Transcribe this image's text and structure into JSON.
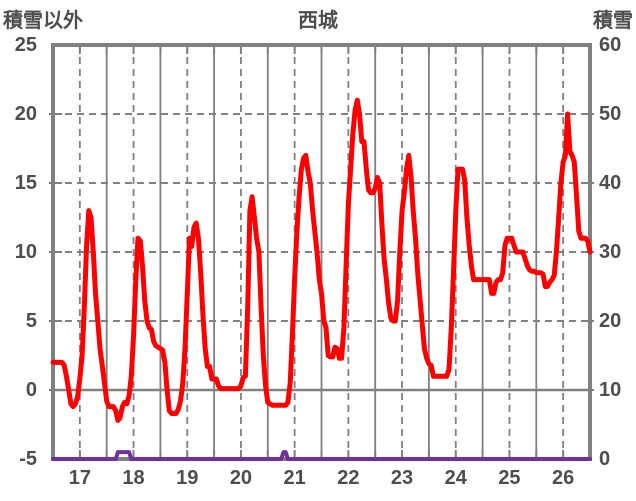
{
  "header": {
    "left_axis_title": "積雪以外",
    "title": "西城",
    "right_axis_title": "積雪"
  },
  "colors": {
    "temperature_series": "#ff0000",
    "snow_series": "#7030a0",
    "grid": "#808080",
    "text": "#4d4d4d",
    "background": "#ffffff"
  },
  "chart_data": {
    "type": "line",
    "title": "西城",
    "left_axis": {
      "title": "積雪以外",
      "ticks": [
        25,
        20,
        15,
        10,
        5,
        0,
        -5
      ],
      "range": [
        -5,
        25
      ]
    },
    "right_axis": {
      "title": "積雪",
      "ticks": [
        60,
        50,
        40,
        30,
        20,
        10,
        0
      ],
      "range": [
        0,
        60
      ]
    },
    "x_axis": {
      "labels": [
        "17",
        "18",
        "19",
        "20",
        "21",
        "22",
        "23",
        "24",
        "25",
        "26"
      ],
      "hours_per_day": 24
    },
    "grid": {
      "vertical_solid": "day boundaries",
      "vertical_dashed": "day midpoints",
      "horizontal_dashed": "every 5 left-units",
      "horizontal_solid_at": 0
    },
    "series": [
      {
        "name": "積雪以外",
        "axis": "left",
        "color": "#ff0000",
        "values": [
          2,
          2,
          2,
          2,
          2,
          1.8,
          1,
          0,
          -1,
          -1.2,
          -1,
          -0.5,
          0.8,
          2.5,
          6,
          10.5,
          13,
          12.5,
          10,
          7,
          5,
          3,
          1.8,
          0.5,
          -0.8,
          -1.2,
          -1.2,
          -1.2,
          -1.5,
          -2.2,
          -2,
          -1.2,
          -0.9,
          -1,
          -0.4,
          1,
          4,
          8,
          11,
          10.8,
          9,
          6.5,
          5,
          4.5,
          4.4,
          3.5,
          3.2,
          3.1,
          3,
          2.9,
          2,
          0,
          -1.5,
          -1.7,
          -1.7,
          -1.7,
          -1.4,
          -0.8,
          0.5,
          3,
          7,
          11,
          10.4,
          11.8,
          12.1,
          11,
          8.5,
          5.5,
          3,
          1.7,
          1.7,
          0.8,
          0.8,
          0.8,
          0.3,
          0.1,
          0.1,
          0.1,
          0.1,
          0.1,
          0.1,
          0.1,
          0.1,
          0.1,
          0.3,
          0.9,
          1,
          6,
          13,
          14,
          12.5,
          11,
          10,
          6,
          2.5,
          0.3,
          -0.9,
          -1,
          -1.1,
          -1.1,
          -1.1,
          -1.1,
          -1.1,
          -1.1,
          -1.1,
          -0.9,
          0.5,
          4,
          8,
          11.5,
          14,
          16,
          16.8,
          17,
          15.8,
          15,
          13,
          11.5,
          10,
          8,
          7,
          5.1,
          4.5,
          2.5,
          2.4,
          2.4,
          3.1,
          3,
          2.3,
          2.3,
          4.5,
          9,
          13.5,
          16,
          18.5,
          20.3,
          21,
          20,
          18,
          18,
          16,
          14.5,
          14.3,
          14.3,
          14.6,
          15.4,
          15,
          12,
          9.5,
          8,
          6.3,
          5.2,
          5,
          5,
          6.5,
          10,
          13,
          14.3,
          16,
          17,
          15.5,
          13,
          11,
          8.5,
          6.7,
          4.8,
          3,
          2.3,
          1.9,
          1.8,
          1,
          1,
          1,
          1,
          1,
          1,
          1,
          1.5,
          4.5,
          8.5,
          13,
          16,
          16,
          16,
          15.2,
          12.5,
          10.5,
          9,
          8,
          8,
          8,
          8,
          8,
          8,
          8,
          8,
          7,
          7,
          7.8,
          8,
          8,
          8.5,
          10.5,
          11,
          11,
          11,
          10.5,
          10,
          10,
          10,
          10,
          9.5,
          9,
          8.7,
          8.6,
          8.6,
          8.5,
          8.5,
          8.5,
          8.4,
          7.5,
          7.5,
          7.8,
          8,
          8.3,
          10,
          12.5,
          15,
          16.5,
          17,
          20,
          17.3,
          17,
          16.5,
          14,
          11.5,
          11,
          11,
          11,
          10.8,
          10
        ]
      },
      {
        "name": "積雪",
        "axis": "right",
        "color": "#7030a0",
        "values": [
          0,
          0,
          0,
          0,
          0,
          0,
          0,
          0,
          0,
          0,
          0,
          0,
          0,
          0,
          0,
          0,
          0,
          0,
          0,
          0,
          0,
          0,
          0,
          0,
          0,
          0,
          0,
          0,
          0,
          1,
          1,
          1,
          1,
          1,
          1,
          0,
          0,
          0,
          0,
          0,
          0,
          0,
          0,
          0,
          0,
          0,
          0,
          0,
          0,
          0,
          0,
          0,
          0,
          0,
          0,
          0,
          0,
          0,
          0,
          0,
          0,
          0,
          0,
          0,
          0,
          0,
          0,
          0,
          0,
          0,
          0,
          0,
          0,
          0,
          0,
          0,
          0,
          0,
          0,
          0,
          0,
          0,
          0,
          0,
          0,
          0,
          0,
          0,
          0,
          0,
          0,
          0,
          0,
          0,
          0,
          0,
          0,
          0,
          0,
          0,
          0,
          0,
          0,
          1,
          1,
          0,
          0,
          0,
          0,
          0,
          0,
          0,
          0,
          0,
          0,
          0,
          0,
          0,
          0,
          0,
          0,
          0,
          0,
          0,
          0,
          0,
          0,
          0,
          0,
          0,
          0,
          0,
          0,
          0,
          0,
          0,
          0,
          0,
          0,
          0,
          0,
          0,
          0,
          0,
          0,
          0,
          0,
          0,
          0,
          0,
          0,
          0,
          0,
          0,
          0,
          0,
          0,
          0,
          0,
          0,
          0,
          0,
          0,
          0,
          0,
          0,
          0,
          0,
          0,
          0,
          0,
          0,
          0,
          0,
          0,
          0,
          0,
          0,
          0,
          0,
          0,
          0,
          0,
          0,
          0,
          0,
          0,
          0,
          0,
          0,
          0,
          0,
          0,
          0,
          0,
          0,
          0,
          0,
          0,
          0,
          0,
          0,
          0,
          0,
          0,
          0,
          0,
          0,
          0,
          0,
          0,
          0,
          0,
          0,
          0,
          0,
          0,
          0,
          0,
          0,
          0,
          0,
          0,
          0,
          0,
          0,
          0,
          0,
          0,
          0,
          0,
          0,
          0,
          0,
          0,
          0,
          0,
          0,
          0,
          0,
          0
        ]
      }
    ]
  }
}
